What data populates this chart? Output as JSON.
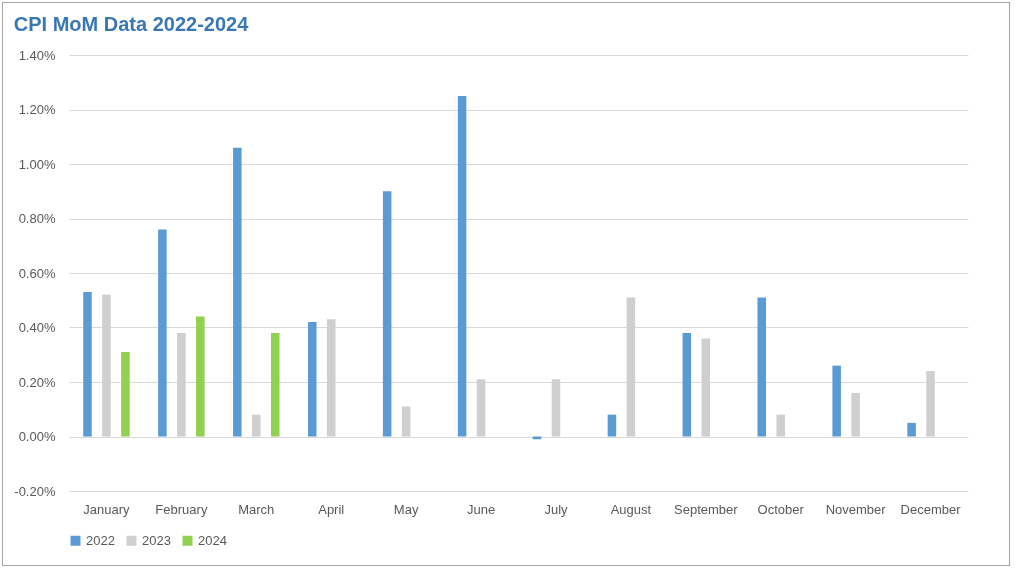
{
  "chart_data": {
    "type": "bar",
    "title": "CPI MoM Data 2022-2024",
    "categories": [
      "January",
      "February",
      "March",
      "April",
      "May",
      "June",
      "July",
      "August",
      "September",
      "October",
      "November",
      "December"
    ],
    "series": [
      {
        "name": "2022",
        "color": "#5b9bd5",
        "values": [
          0.53,
          0.76,
          1.06,
          0.42,
          0.9,
          1.25,
          -0.01,
          0.08,
          0.38,
          0.51,
          0.26,
          0.05
        ]
      },
      {
        "name": "2023",
        "color": "#d0cece",
        "values": [
          0.52,
          0.38,
          0.08,
          0.43,
          0.11,
          0.21,
          0.21,
          0.51,
          0.36,
          0.08,
          0.16,
          0.24
        ]
      },
      {
        "name": "2024",
        "color": "#92d050",
        "values": [
          0.31,
          0.44,
          0.38,
          null,
          null,
          null,
          null,
          null,
          null,
          null,
          null,
          null
        ]
      }
    ],
    "ylim": [
      -0.2,
      1.4
    ],
    "yticks": [
      {
        "value": -0.2,
        "label": "-0.20%"
      },
      {
        "value": 0,
        "label": "0.00%"
      },
      {
        "value": 0.2,
        "label": "0.20%"
      },
      {
        "value": 0.4,
        "label": "0.40%"
      },
      {
        "value": 0.6,
        "label": "0.60%"
      },
      {
        "value": 0.8,
        "label": "0.80%"
      },
      {
        "value": 1.0,
        "label": "1.00%"
      },
      {
        "value": 1.2,
        "label": "1.20%"
      },
      {
        "value": 1.4,
        "label": "1.40%"
      }
    ],
    "grid": "y",
    "legend": "bottom"
  }
}
